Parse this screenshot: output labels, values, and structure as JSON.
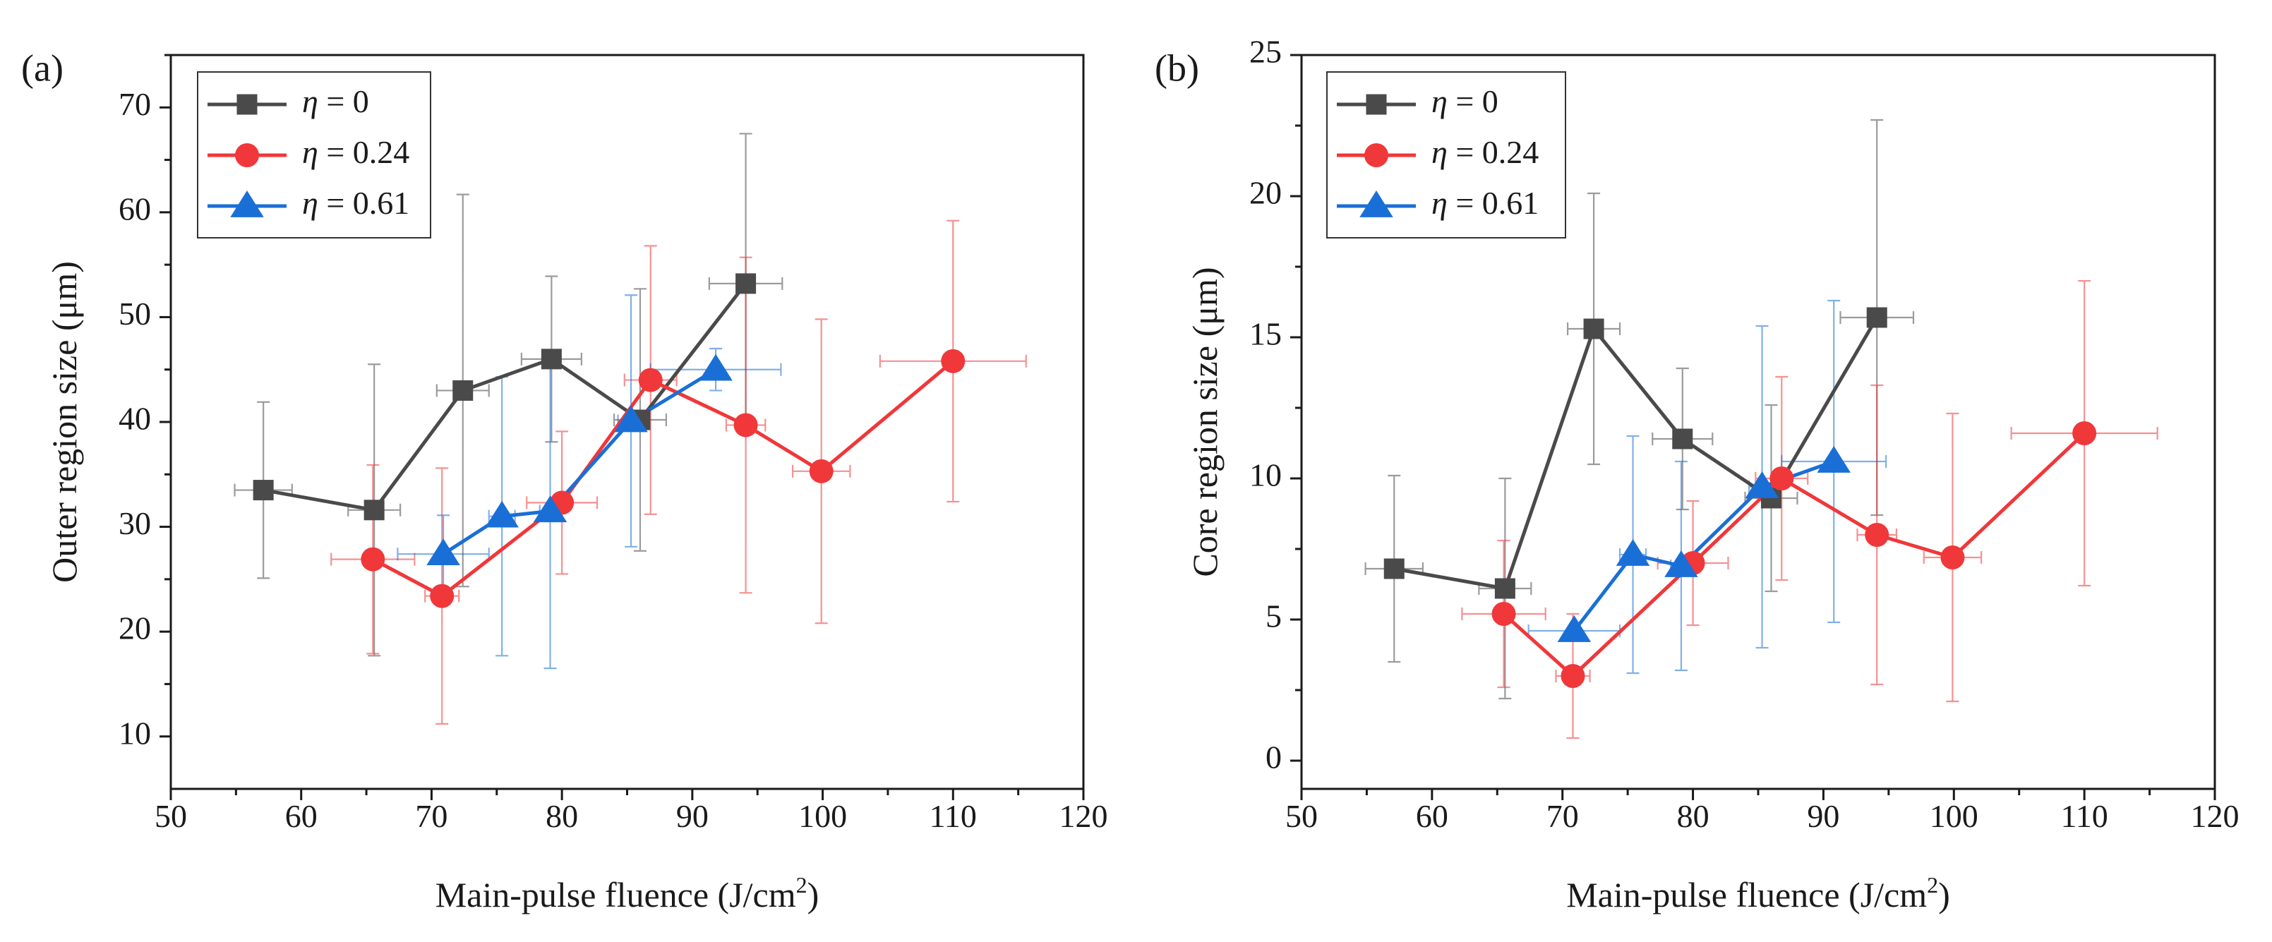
{
  "figure": {
    "xlabel_main": "Main-pulse fluence (J/cm",
    "xlabel_sup": "2",
    "xlabel_end": ")"
  },
  "chart_data": [
    {
      "type": "scatter",
      "panel_label": "(a)",
      "xlabel": "Main-pulse fluence (J/cm²)",
      "ylabel": "Outer region size (μm)",
      "xlim": [
        50,
        120
      ],
      "ylim": [
        5,
        75
      ],
      "xticks": [
        50,
        60,
        70,
        80,
        90,
        100,
        110,
        120
      ],
      "yticks": [
        10,
        20,
        30,
        40,
        50,
        60,
        70
      ],
      "legend_position": "top-left",
      "series": [
        {
          "name_prefix": "η",
          "name_suffix": " = 0",
          "color": "#4a4a4a",
          "marker": "square",
          "points": [
            {
              "x": 57.1,
              "y": 33.5,
              "xerr": 2.2,
              "yerr": 8.4
            },
            {
              "x": 65.6,
              "y": 31.6,
              "xerr": 2.0,
              "yerr": 13.9
            },
            {
              "x": 72.4,
              "y": 43.0,
              "xerr": 2.0,
              "yerr": 18.7
            },
            {
              "x": 79.2,
              "y": 46.0,
              "xerr": 2.3,
              "yerr": 7.9
            },
            {
              "x": 86.0,
              "y": 40.2,
              "xerr": 2.0,
              "yerr": 12.5
            },
            {
              "x": 94.1,
              "y": 53.2,
              "xerr": 2.8,
              "yerr": 14.3
            }
          ]
        },
        {
          "name_prefix": "η",
          "name_suffix": " = 0.24",
          "color": "#f0373a",
          "marker": "circle",
          "points": [
            {
              "x": 65.5,
              "y": 26.9,
              "xerr": 3.2,
              "yerr": 9.0
            },
            {
              "x": 70.8,
              "y": 23.4,
              "xerr": 1.3,
              "yerr": 12.2
            },
            {
              "x": 80.0,
              "y": 32.3,
              "xerr": 2.7,
              "yerr": 6.8
            },
            {
              "x": 86.8,
              "y": 44.0,
              "xerr": 2.0,
              "yerr": 12.8
            },
            {
              "x": 94.1,
              "y": 39.7,
              "xerr": 1.5,
              "yerr": 16.0
            },
            {
              "x": 99.9,
              "y": 35.3,
              "xerr": 2.2,
              "yerr": 14.5
            },
            {
              "x": 110.0,
              "y": 45.8,
              "xerr": 5.6,
              "yerr": 13.4
            }
          ]
        },
        {
          "name_prefix": "η",
          "name_suffix": " = 0.61",
          "color": "#1a6fd6",
          "marker": "triangle",
          "points": [
            {
              "x": 70.9,
              "y": 27.4,
              "xerr": 3.5,
              "yerr": 3.7
            },
            {
              "x": 75.4,
              "y": 31.0,
              "xerr": 1.0,
              "yerr": 13.3
            },
            {
              "x": 79.1,
              "y": 31.5,
              "xerr": 0.8,
              "yerr": 15.0
            },
            {
              "x": 85.3,
              "y": 40.1,
              "xerr": 1.0,
              "yerr": 12.0
            },
            {
              "x": 91.8,
              "y": 45.0,
              "xerr": 5.0,
              "yerr": 2.0
            }
          ]
        }
      ]
    },
    {
      "type": "scatter",
      "panel_label": "(b)",
      "xlabel": "Main-pulse fluence (J/cm²)",
      "ylabel": "Core region size (μm)",
      "xlim": [
        50,
        120
      ],
      "ylim": [
        -1,
        25
      ],
      "xticks": [
        50,
        60,
        70,
        80,
        90,
        100,
        110,
        120
      ],
      "yticks": [
        0,
        5,
        10,
        15,
        20,
        25
      ],
      "legend_position": "top-left",
      "series": [
        {
          "name_prefix": "η",
          "name_suffix": " = 0",
          "color": "#4a4a4a",
          "marker": "square",
          "points": [
            {
              "x": 57.1,
              "y": 6.8,
              "xerr": 2.2,
              "yerr": 3.3
            },
            {
              "x": 65.6,
              "y": 6.1,
              "xerr": 2.0,
              "yerr": 3.9
            },
            {
              "x": 72.4,
              "y": 15.3,
              "xerr": 2.0,
              "yerr": 4.8
            },
            {
              "x": 79.2,
              "y": 11.4,
              "xerr": 2.3,
              "yerr": 2.5
            },
            {
              "x": 86.0,
              "y": 9.3,
              "xerr": 2.0,
              "yerr": 3.3
            },
            {
              "x": 94.1,
              "y": 15.7,
              "xerr": 2.8,
              "yerr": 7.0
            }
          ]
        },
        {
          "name_prefix": "η",
          "name_suffix": " = 0.24",
          "color": "#f0373a",
          "marker": "circle",
          "points": [
            {
              "x": 65.5,
              "y": 5.2,
              "xerr": 3.2,
              "yerr": 2.6
            },
            {
              "x": 70.8,
              "y": 3.0,
              "xerr": 1.3,
              "yerr": 2.2
            },
            {
              "x": 80.0,
              "y": 7.0,
              "xerr": 2.7,
              "yerr": 2.2
            },
            {
              "x": 86.8,
              "y": 10.0,
              "xerr": 2.0,
              "yerr": 3.6
            },
            {
              "x": 94.1,
              "y": 8.0,
              "xerr": 1.5,
              "yerr": 5.3
            },
            {
              "x": 99.9,
              "y": 7.2,
              "xerr": 2.2,
              "yerr": 5.1
            },
            {
              "x": 110.0,
              "y": 11.6,
              "xerr": 5.6,
              "yerr": 5.4
            }
          ]
        },
        {
          "name_prefix": "η",
          "name_suffix": " = 0.61",
          "color": "#1a6fd6",
          "marker": "triangle",
          "points": [
            {
              "x": 70.9,
              "y": 4.6,
              "xerr": 3.5,
              "yerr": 0.0
            },
            {
              "x": 75.4,
              "y": 7.3,
              "xerr": 1.0,
              "yerr": 4.2
            },
            {
              "x": 79.1,
              "y": 6.9,
              "xerr": 0.8,
              "yerr": 3.7
            },
            {
              "x": 85.3,
              "y": 9.7,
              "xerr": 1.0,
              "yerr": 5.7
            },
            {
              "x": 90.8,
              "y": 10.6,
              "xerr": 4.0,
              "yerr": 5.7
            }
          ]
        }
      ]
    }
  ]
}
